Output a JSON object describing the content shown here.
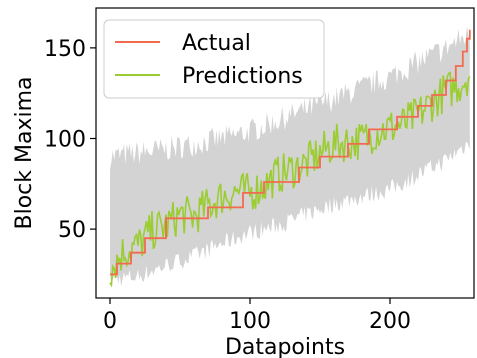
{
  "chart_data": {
    "type": "line",
    "xlabel": "Datapoints",
    "ylabel": "Block Maxima",
    "xlim": [
      -10,
      260
    ],
    "ylim": [
      12,
      172
    ],
    "xticks": [
      0,
      100,
      200
    ],
    "yticks": [
      50,
      100,
      150
    ],
    "grid": false,
    "legend_position": "top-left",
    "n_points": 258,
    "series": [
      {
        "name": "Actual",
        "color": "#f26b4f",
        "style": "step",
        "x": [
          0,
          5,
          15,
          25,
          40,
          70,
          95,
          110,
          135,
          150,
          170,
          185,
          205,
          220,
          230,
          240,
          247,
          252,
          255,
          257
        ],
        "values": [
          25,
          31,
          37,
          45,
          56,
          62,
          70,
          76,
          84,
          90,
          97,
          105,
          112,
          118,
          124,
          132,
          140,
          148,
          155,
          160
        ]
      },
      {
        "name": "Predictions",
        "color": "#9acd32",
        "style": "line",
        "x": [
          0,
          10,
          20,
          30,
          40,
          50,
          60,
          70,
          80,
          90,
          100,
          110,
          120,
          130,
          140,
          150,
          160,
          170,
          180,
          190,
          200,
          210,
          220,
          230,
          240,
          250,
          257
        ],
        "values": [
          28,
          38,
          41,
          49,
          52,
          58,
          57,
          63,
          68,
          71,
          70,
          74,
          80,
          83,
          86,
          92,
          97,
          98,
          99,
          104,
          106,
          108,
          113,
          120,
          126,
          130,
          136
        ]
      }
    ],
    "band": {
      "color": "#d3d3d3",
      "x": [
        0,
        20,
        40,
        60,
        80,
        100,
        120,
        140,
        160,
        180,
        200,
        220,
        240,
        257
      ],
      "lower": [
        22,
        24,
        30,
        35,
        42,
        48,
        52,
        58,
        64,
        68,
        72,
        80,
        88,
        98
      ],
      "upper": [
        90,
        92,
        94,
        97,
        100,
        104,
        110,
        116,
        122,
        128,
        134,
        142,
        150,
        158
      ]
    }
  }
}
